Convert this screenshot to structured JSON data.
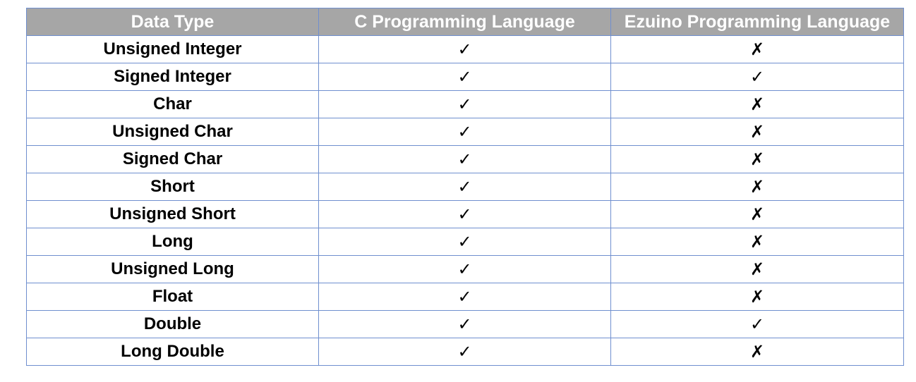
{
  "table": {
    "headers": [
      "Data Type",
      "C Programming Language",
      "Ezuino Programming Language"
    ],
    "rows": [
      {
        "type": "Unsigned Integer",
        "c": "✓",
        "ezuino": "✗"
      },
      {
        "type": "Signed Integer",
        "c": "✓",
        "ezuino": "✓"
      },
      {
        "type": "Char",
        "c": "✓",
        "ezuino": "✗"
      },
      {
        "type": "Unsigned Char",
        "c": "✓",
        "ezuino": "✗"
      },
      {
        "type": "Signed Char",
        "c": "✓",
        "ezuino": "✗"
      },
      {
        "type": "Short",
        "c": "✓",
        "ezuino": "✗"
      },
      {
        "type": "Unsigned Short",
        "c": "✓",
        "ezuino": "✗"
      },
      {
        "type": "Long",
        "c": "✓",
        "ezuino": "✗"
      },
      {
        "type": "Unsigned Long",
        "c": "✓",
        "ezuino": "✗"
      },
      {
        "type": "Float",
        "c": "✓",
        "ezuino": "✗"
      },
      {
        "type": "Double",
        "c": "✓",
        "ezuino": "✓"
      },
      {
        "type": "Long Double",
        "c": "✓",
        "ezuino": "✗"
      }
    ]
  },
  "colors": {
    "header_bg": "#a6a6a6",
    "header_text": "#ffffff",
    "border": "#6f8fcf"
  }
}
